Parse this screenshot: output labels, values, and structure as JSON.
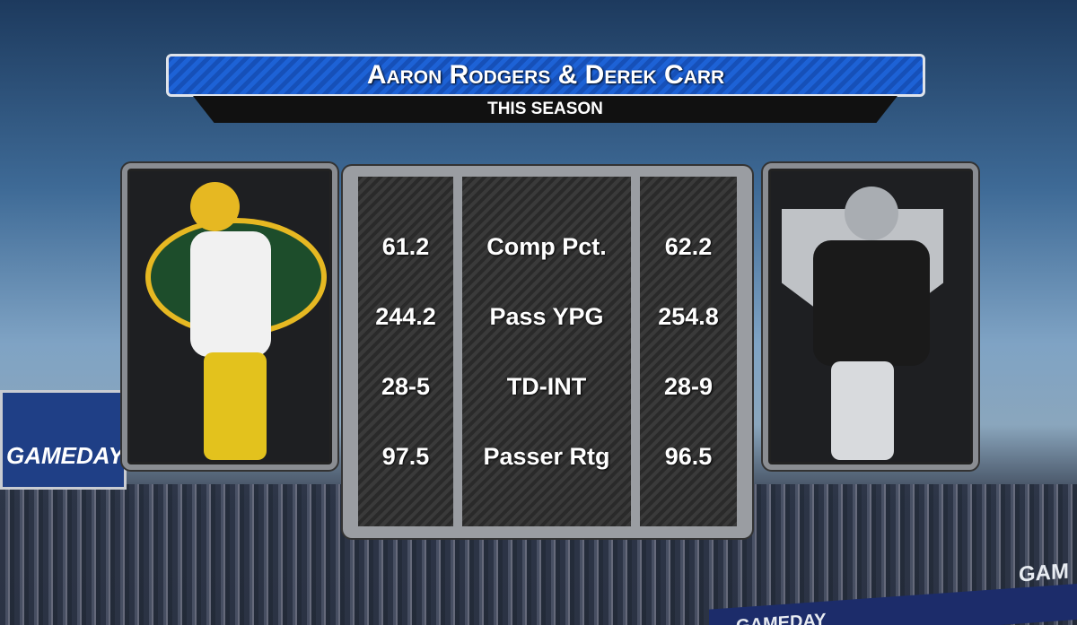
{
  "header": {
    "title": "Aaron Rodgers & Derek Carr",
    "subtitle": "THIS SEASON"
  },
  "table": {
    "rows": [
      [
        "61.2",
        "Comp Pct.",
        "62.2"
      ],
      [
        "244.2",
        "Pass YPG",
        "254.8"
      ],
      [
        "28-5",
        "TD-INT",
        "28-9"
      ],
      [
        "97.5",
        "Passer Rtg",
        "96.5"
      ]
    ]
  },
  "background_signs": [
    "GAMEDAY",
    "GAMEDAY",
    "GAM"
  ]
}
